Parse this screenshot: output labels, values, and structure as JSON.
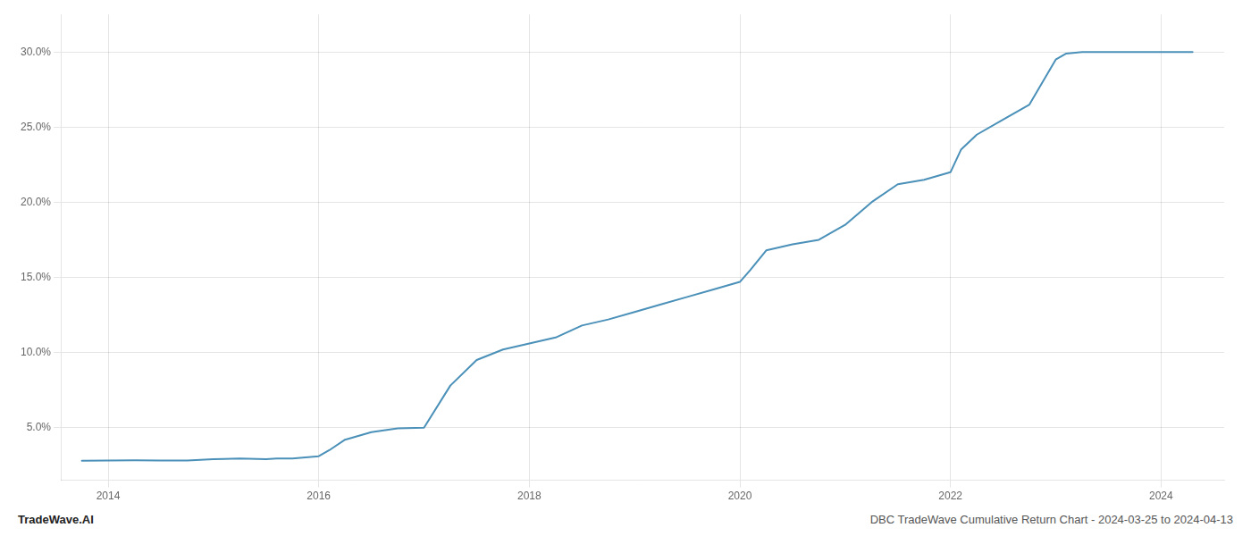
{
  "chart_data": {
    "type": "line",
    "title": "DBC TradeWave Cumulative Return Chart - 2024-03-25 to 2024-04-13",
    "annotations": [
      "TradeWave.AI"
    ],
    "x": [
      2013.75,
      2014.0,
      2014.25,
      2014.5,
      2014.75,
      2015.0,
      2015.1,
      2015.25,
      2015.5,
      2015.6,
      2015.75,
      2016.0,
      2016.1,
      2016.25,
      2016.5,
      2016.75,
      2017.0,
      2017.25,
      2017.5,
      2017.75,
      2018.0,
      2018.25,
      2018.5,
      2018.75,
      2019.0,
      2019.25,
      2019.5,
      2019.75,
      2020.0,
      2020.1,
      2020.25,
      2020.5,
      2020.75,
      2021.0,
      2021.25,
      2021.5,
      2021.75,
      2022.0,
      2022.1,
      2022.25,
      2022.5,
      2022.75,
      2023.0,
      2023.1,
      2023.25,
      2023.5,
      2023.75,
      2024.0,
      2024.3
    ],
    "values": [
      2.8,
      2.82,
      2.83,
      2.82,
      2.82,
      2.9,
      2.92,
      2.95,
      2.9,
      2.95,
      2.95,
      3.1,
      3.5,
      4.2,
      4.7,
      4.95,
      5.0,
      7.8,
      9.5,
      10.2,
      10.6,
      11.0,
      11.8,
      12.2,
      12.7,
      13.2,
      13.7,
      14.2,
      14.7,
      15.5,
      16.8,
      17.2,
      17.5,
      18.5,
      20.0,
      21.2,
      21.5,
      22.0,
      23.5,
      24.5,
      25.5,
      26.5,
      29.5,
      29.9,
      30.0,
      30.0,
      30.0,
      30.0,
      30.0
    ],
    "color": "#4a90b8",
    "xlim": [
      2013.55,
      2024.6
    ],
    "ylim": [
      1.5,
      32.5
    ],
    "xticks": [
      2014,
      2016,
      2018,
      2020,
      2022,
      2024
    ],
    "yticks": [
      {
        "value": 5.0,
        "label": "5.0%"
      },
      {
        "value": 10.0,
        "label": "10.0%"
      },
      {
        "value": 15.0,
        "label": "15.0%"
      },
      {
        "value": 20.0,
        "label": "20.0%"
      },
      {
        "value": 25.0,
        "label": "25.0%"
      },
      {
        "value": 30.0,
        "label": "30.0%"
      }
    ],
    "grid": true
  }
}
